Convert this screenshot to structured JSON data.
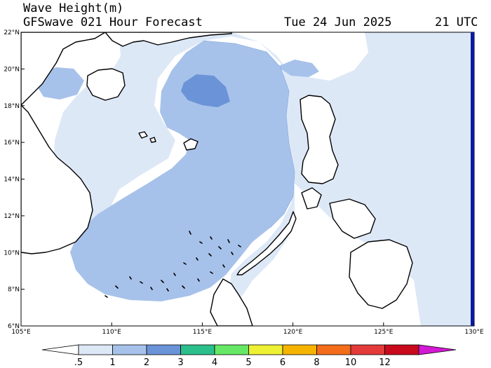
{
  "header": {
    "title": "Wave Height(m)",
    "subtitle": "GFSwave 021 Hour Forecast",
    "date": "Tue 24 Jun 2025",
    "time": "21 UTC"
  },
  "map": {
    "lon_range": [
      105,
      130
    ],
    "lat_range": [
      6,
      22
    ],
    "lon_ticks": [
      "105°E",
      "110°E",
      "115°E",
      "120°E",
      "125°E",
      "130°E"
    ],
    "lat_ticks": [
      "6°N",
      "8°N",
      "10°N",
      "12°N",
      "14°N",
      "16°N",
      "18°N",
      "20°N",
      "22°N"
    ],
    "features": {
      "coastline": "#000000",
      "max_wave_zone": "approx. 2–3 m, centered near 19°N 115°E"
    }
  },
  "colorbar": {
    "labels": [
      ".5",
      "1",
      "2",
      "3",
      "4",
      "5",
      "6",
      "8",
      "10",
      "12"
    ],
    "colors": [
      "#ffffff",
      "#dde8f7",
      "#a7c2ea",
      "#6b93d8",
      "#2bbf8c",
      "#66e866",
      "#eef033",
      "#f5b400",
      "#f36d1a",
      "#e33a3a",
      "#c90a1c",
      "#d319d3"
    ]
  }
}
